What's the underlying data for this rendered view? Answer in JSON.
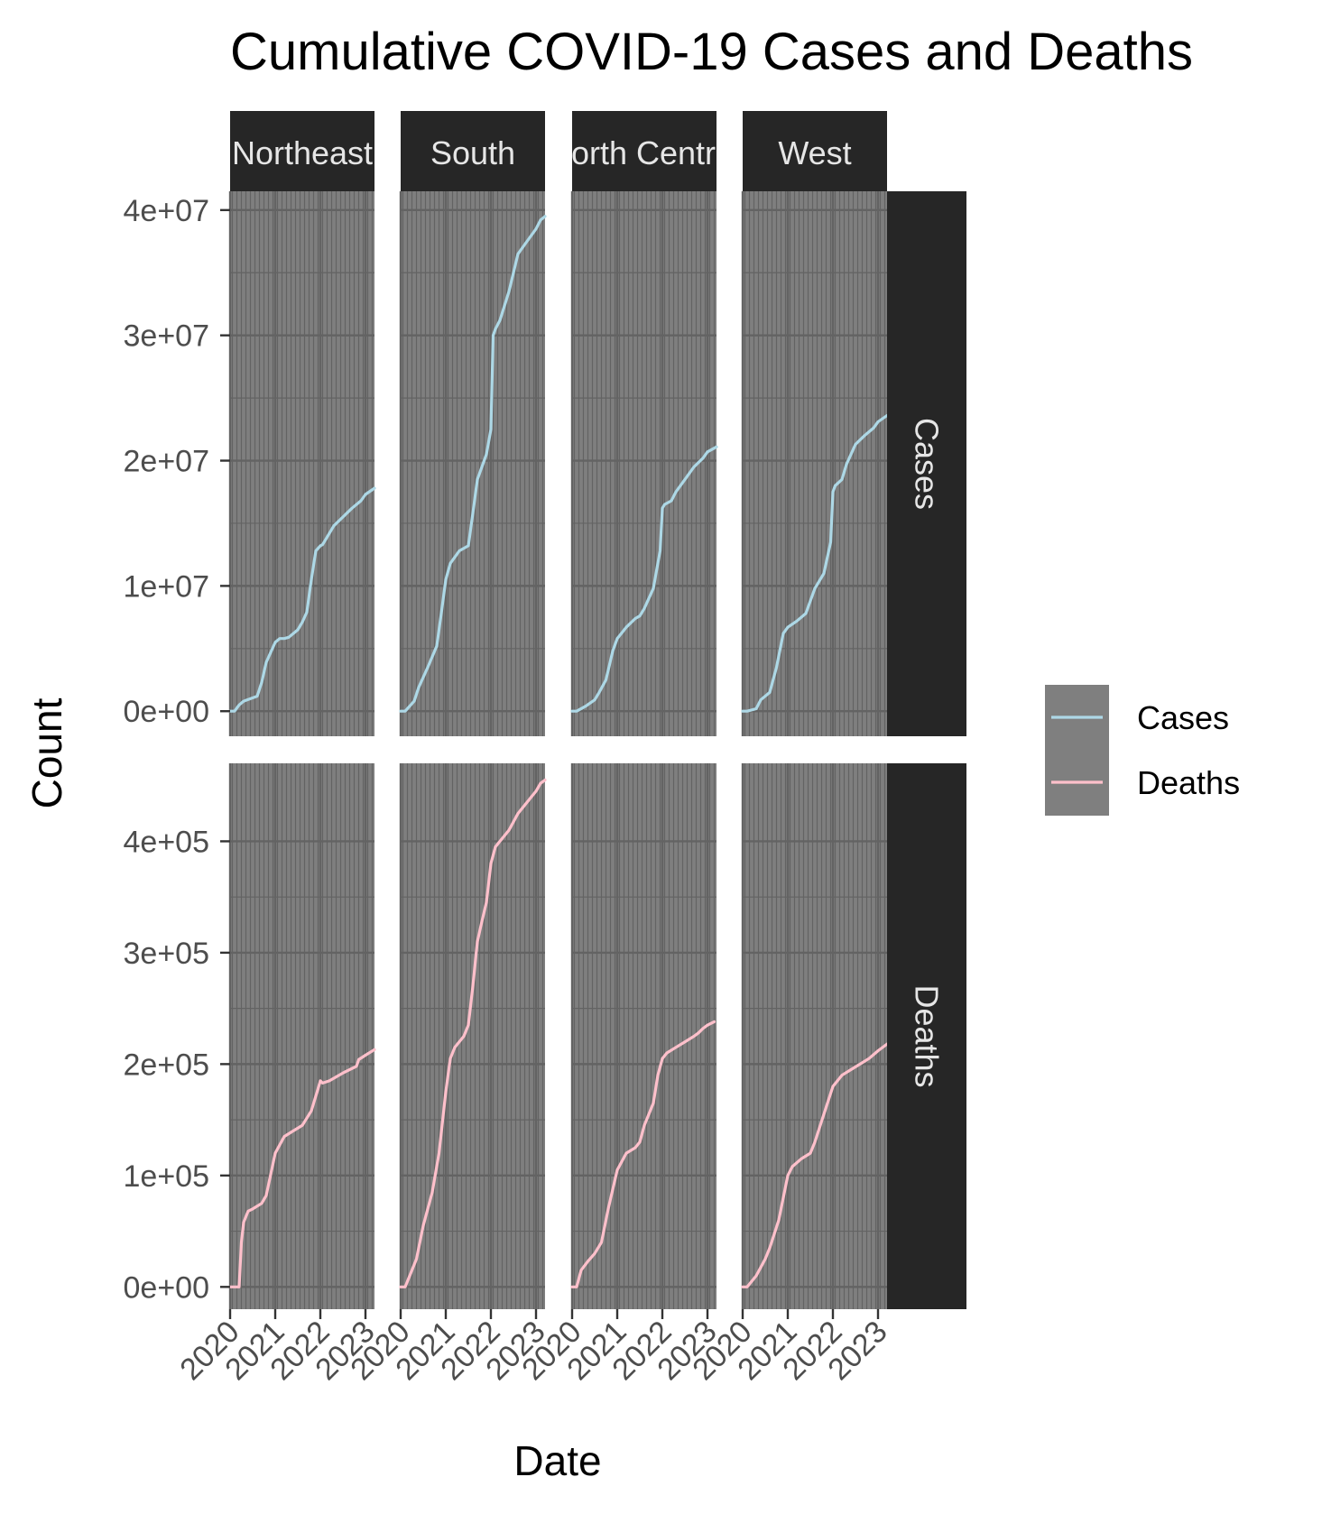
{
  "chart_data": {
    "type": "line",
    "title": "Cumulative COVID-19 Cases and Deaths",
    "xlabel": "Date",
    "ylabel": "Count",
    "x_ticks": [
      "2020",
      "2021",
      "2022",
      "2023"
    ],
    "x_range": [
      2020.0,
      2023.2
    ],
    "facet_columns": [
      "Northeast",
      "South",
      "North Central",
      "West"
    ],
    "facet_rows": [
      "Cases",
      "Deaths"
    ],
    "rows": [
      {
        "name": "Cases",
        "y_range": [
          -2000000,
          41500000
        ],
        "y_ticks": [
          {
            "value": 0,
            "label": "0e+00"
          },
          {
            "value": 10000000,
            "label": "1e+07"
          },
          {
            "value": 20000000,
            "label": "2e+07"
          },
          {
            "value": 30000000,
            "label": "3e+07"
          },
          {
            "value": 40000000,
            "label": "4e+07"
          }
        ]
      },
      {
        "name": "Deaths",
        "y_range": [
          -20000,
          470000
        ],
        "y_ticks": [
          {
            "value": 0,
            "label": "0e+00"
          },
          {
            "value": 100000,
            "label": "1e+05"
          },
          {
            "value": 200000,
            "label": "2e+05"
          },
          {
            "value": 300000,
            "label": "3e+05"
          },
          {
            "value": 400000,
            "label": "4e+05"
          }
        ]
      }
    ],
    "legend": {
      "position": "right",
      "entries": [
        {
          "name": "Cases",
          "color": "#add8e6"
        },
        {
          "name": "Deaths",
          "color": "#ffc0cb"
        }
      ]
    },
    "grid": true,
    "colors": {
      "panel_bg": "#7f7f7f",
      "grid": "#636363",
      "strip_bg": "#262626"
    },
    "series": [
      {
        "name": "Cases",
        "region": "Northeast",
        "x": [
          2020.0,
          2020.1,
          2020.2,
          2020.3,
          2020.6,
          2020.7,
          2020.8,
          2020.9,
          2021.0,
          2021.1,
          2021.2,
          2021.3,
          2021.5,
          2021.6,
          2021.7,
          2021.8,
          2021.9,
          2022.0,
          2022.05,
          2022.1,
          2022.2,
          2022.3,
          2022.5,
          2022.7,
          2022.9,
          2023.0,
          2023.2
        ],
        "y": [
          0,
          10000,
          500000,
          800000,
          1200000,
          2300000,
          3900000,
          4700000,
          5500000,
          5800000,
          5800000,
          5900000,
          6500000,
          7100000,
          7900000,
          10500000,
          12800000,
          13200000,
          13300000,
          13600000,
          14200000,
          14800000,
          15500000,
          16200000,
          16800000,
          17300000,
          17800000
        ]
      },
      {
        "name": "Deaths",
        "region": "Northeast",
        "x": [
          2020.0,
          2020.2,
          2020.25,
          2020.3,
          2020.4,
          2020.5,
          2020.7,
          2020.8,
          2021.0,
          2021.2,
          2021.4,
          2021.6,
          2021.8,
          2021.95,
          2022.0,
          2022.05,
          2022.2,
          2022.5,
          2022.8,
          2022.85,
          2023.0,
          2023.2
        ],
        "y": [
          0,
          0,
          40000,
          58000,
          68000,
          70000,
          75000,
          82000,
          120000,
          135000,
          140000,
          145000,
          158000,
          178000,
          185000,
          183000,
          185000,
          192000,
          198000,
          204000,
          208000,
          213000
        ]
      },
      {
        "name": "Cases",
        "region": "South",
        "x": [
          2020.0,
          2020.1,
          2020.3,
          2020.4,
          2020.6,
          2020.8,
          2020.9,
          2021.0,
          2021.1,
          2021.3,
          2021.5,
          2021.6,
          2021.7,
          2021.9,
          2022.0,
          2022.05,
          2022.1,
          2022.2,
          2022.4,
          2022.6,
          2022.8,
          2023.0,
          2023.1,
          2023.2
        ],
        "y": [
          0,
          0,
          800000,
          1900000,
          3500000,
          5200000,
          7800000,
          10500000,
          11800000,
          12800000,
          13200000,
          15800000,
          18500000,
          20500000,
          22500000,
          30000000,
          30500000,
          31200000,
          33500000,
          36500000,
          37500000,
          38500000,
          39200000,
          39500000
        ]
      },
      {
        "name": "Deaths",
        "region": "South",
        "x": [
          2020.0,
          2020.1,
          2020.2,
          2020.35,
          2020.5,
          2020.7,
          2020.85,
          2021.0,
          2021.1,
          2021.2,
          2021.4,
          2021.5,
          2021.6,
          2021.7,
          2021.8,
          2021.9,
          2022.0,
          2022.1,
          2022.2,
          2022.4,
          2022.6,
          2022.8,
          2022.9,
          2023.0,
          2023.1,
          2023.2
        ],
        "y": [
          0,
          0,
          10000,
          25000,
          55000,
          85000,
          120000,
          175000,
          205000,
          215000,
          225000,
          235000,
          270000,
          310000,
          328000,
          345000,
          380000,
          395000,
          400000,
          410000,
          425000,
          435000,
          440000,
          445000,
          452000,
          455000
        ]
      },
      {
        "name": "Cases",
        "region": "North Central",
        "x": [
          2020.0,
          2020.1,
          2020.3,
          2020.5,
          2020.6,
          2020.75,
          2020.9,
          2021.0,
          2021.2,
          2021.4,
          2021.5,
          2021.6,
          2021.8,
          2021.95,
          2022.0,
          2022.05,
          2022.2,
          2022.3,
          2022.5,
          2022.7,
          2022.9,
          2023.0,
          2023.2
        ],
        "y": [
          0,
          0,
          400000,
          900000,
          1500000,
          2500000,
          4800000,
          5800000,
          6700000,
          7400000,
          7600000,
          8200000,
          9800000,
          12800000,
          16200000,
          16500000,
          16800000,
          17500000,
          18500000,
          19500000,
          20200000,
          20700000,
          21100000
        ]
      },
      {
        "name": "Deaths",
        "region": "North Central",
        "x": [
          2020.0,
          2020.1,
          2020.2,
          2020.35,
          2020.5,
          2020.65,
          2020.8,
          2021.0,
          2021.2,
          2021.4,
          2021.5,
          2021.6,
          2021.8,
          2021.9,
          2022.0,
          2022.1,
          2022.3,
          2022.5,
          2022.7,
          2022.8,
          2022.9,
          2023.0,
          2023.15
        ],
        "y": [
          0,
          0,
          15000,
          23000,
          30000,
          40000,
          70000,
          105000,
          120000,
          125000,
          130000,
          145000,
          165000,
          190000,
          205000,
          210000,
          215000,
          220000,
          225000,
          228000,
          232000,
          235000,
          238000
        ]
      },
      {
        "name": "Cases",
        "region": "West",
        "x": [
          2020.0,
          2020.1,
          2020.3,
          2020.4,
          2020.6,
          2020.75,
          2020.9,
          2021.0,
          2021.2,
          2021.4,
          2021.5,
          2021.6,
          2021.8,
          2021.95,
          2022.0,
          2022.05,
          2022.2,
          2022.3,
          2022.5,
          2022.7,
          2022.9,
          2023.0,
          2023.2
        ],
        "y": [
          0,
          0,
          200000,
          900000,
          1500000,
          3500000,
          6200000,
          6700000,
          7200000,
          7800000,
          8800000,
          9800000,
          11000000,
          13500000,
          17500000,
          18000000,
          18500000,
          19700000,
          21300000,
          22000000,
          22600000,
          23100000,
          23600000
        ]
      },
      {
        "name": "Deaths",
        "region": "West",
        "x": [
          2020.0,
          2020.1,
          2020.3,
          2020.5,
          2020.6,
          2020.8,
          2020.95,
          2021.0,
          2021.1,
          2021.3,
          2021.5,
          2021.6,
          2021.8,
          2022.0,
          2022.2,
          2022.4,
          2022.6,
          2022.8,
          2023.0,
          2023.2
        ],
        "y": [
          0,
          0,
          10000,
          25000,
          35000,
          60000,
          90000,
          100000,
          108000,
          115000,
          120000,
          130000,
          155000,
          180000,
          190000,
          195000,
          200000,
          205000,
          212000,
          218000
        ]
      }
    ]
  }
}
